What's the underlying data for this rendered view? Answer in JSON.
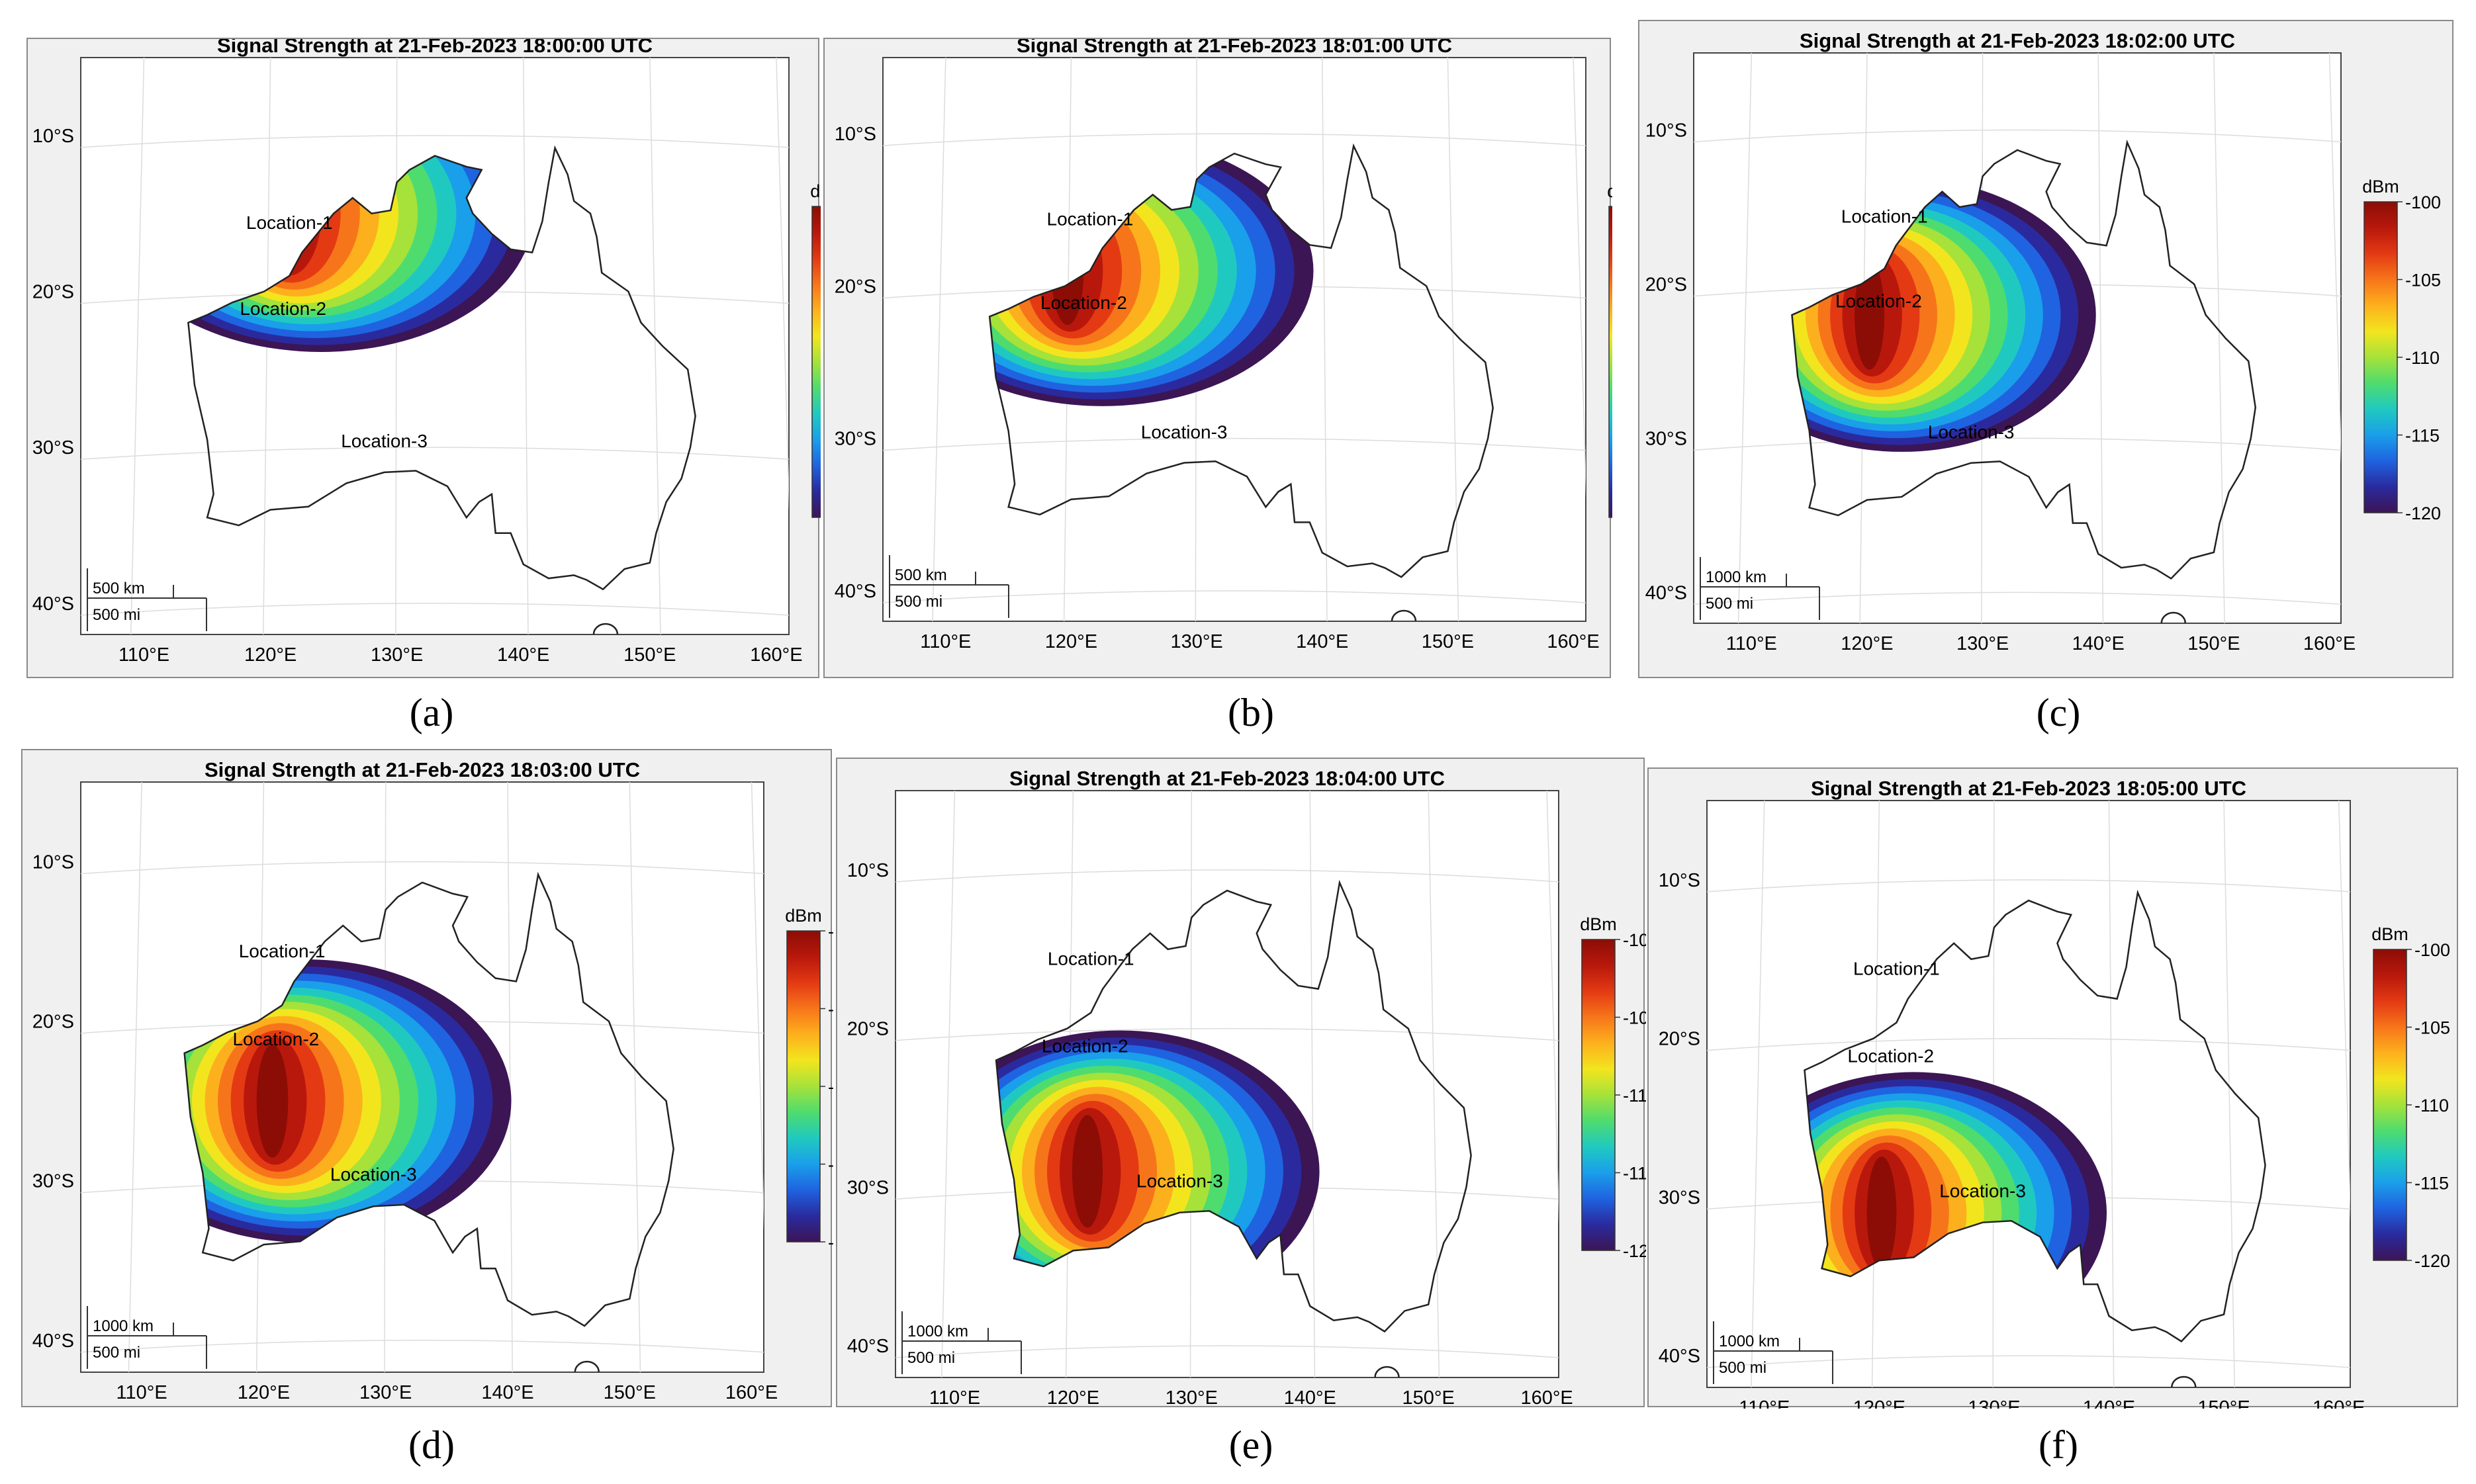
{
  "colorbar": {
    "unit": "dBm",
    "ticks": [
      "-100",
      "-105",
      "-110",
      "-115",
      "-120"
    ]
  },
  "axes": {
    "lat_labels": [
      "10°S",
      "20°S",
      "30°S",
      "40°S"
    ],
    "lon_labels": [
      "110°E",
      "120°E",
      "130°E",
      "140°E",
      "150°E",
      "160°E"
    ]
  },
  "locations": [
    "Location-1",
    "Location-2",
    "Location-3"
  ],
  "panels": [
    {
      "label": "(a)",
      "title": "Signal Strength at 21-Feb-2023 18:00:00 UTC",
      "scale_km": "500 km",
      "scale_mi": "500 mi",
      "center": [
        124,
        -15
      ]
    },
    {
      "label": "(b)",
      "title": "Signal Strength at 21-Feb-2023 18:01:00 UTC",
      "scale_km": "500 km",
      "scale_mi": "500 mi",
      "center": [
        122.5,
        -19
      ]
    },
    {
      "label": "(c)",
      "title": "Signal Strength at 21-Feb-2023 18:02:00 UTC",
      "scale_km": "1000 km",
      "scale_mi": "500 mi",
      "center": [
        123,
        -22
      ]
    },
    {
      "label": "(d)",
      "title": "Signal Strength at 21-Feb-2023 18:03:00 UTC",
      "scale_km": "1000 km",
      "scale_mi": "500 mi",
      "center": [
        123.5,
        -25
      ]
    },
    {
      "label": "(e)",
      "title": "Signal Strength at 21-Feb-2023 18:04:00 UTC",
      "scale_km": "1000 km",
      "scale_mi": "500 mi",
      "center": [
        124,
        -29
      ]
    },
    {
      "label": "(f)",
      "title": "Signal Strength at 21-Feb-2023 18:05:00 UTC",
      "scale_km": "1000 km",
      "scale_mi": "500 mi",
      "center": [
        123,
        -31
      ]
    }
  ]
}
